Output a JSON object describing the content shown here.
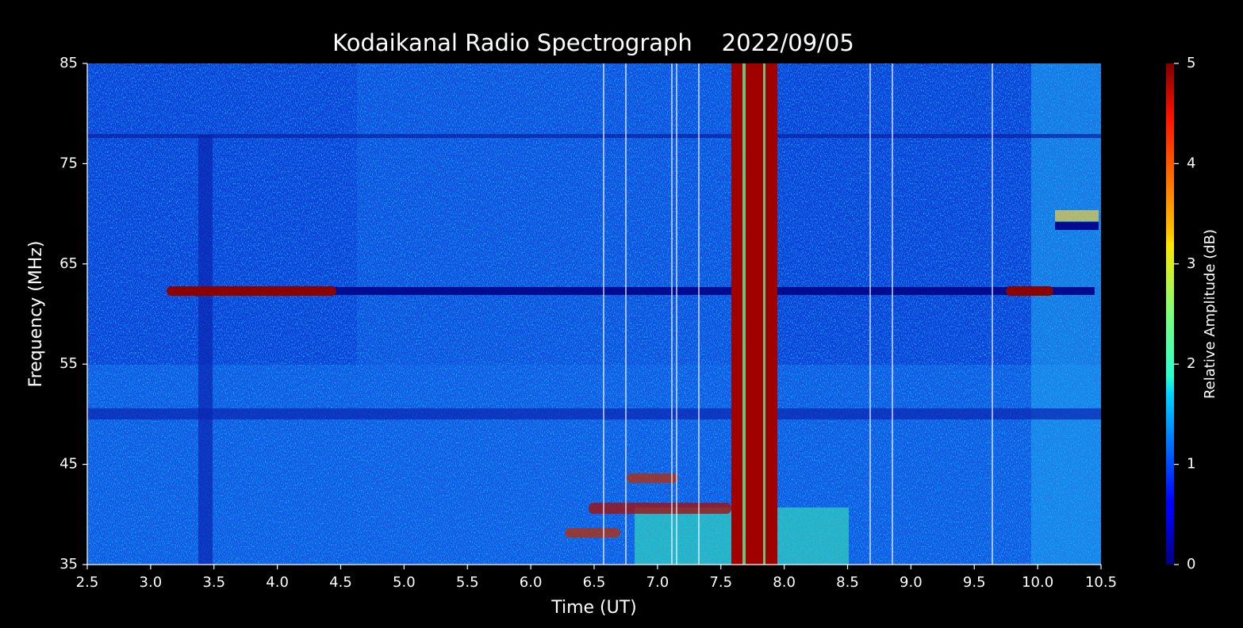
{
  "chart_data": {
    "type": "spectrogram",
    "title": "Kodaikanal Radio Spectrograph    2022/09/05",
    "x_label": "Time (UT)",
    "y_label": "Frequency (MHz)",
    "colorbar_label": "Relative Amplitude (dB)",
    "colormap": "jet",
    "xlim": [
      2.5,
      10.5
    ],
    "xticks": [
      2.5,
      {
        "value": 3,
        "label": "3.0"
      },
      3.5,
      {
        "value": 4,
        "label": "4.0"
      },
      4.5,
      {
        "value": 5,
        "label": "5.0"
      },
      5.5,
      {
        "value": 6,
        "label": "6.0"
      },
      6.5,
      {
        "value": 7,
        "label": "7.0"
      },
      7.5,
      {
        "value": 8,
        "label": "8.0"
      },
      8.5,
      {
        "value": 9,
        "label": "9.0"
      },
      9.5,
      {
        "value": 10,
        "label": "10.0"
      },
      10.5
    ],
    "ylim": [
      35,
      85
    ],
    "yticks": [
      35,
      45,
      55,
      65,
      75,
      85
    ],
    "clim": [
      0,
      5
    ],
    "cticks": [
      0,
      1,
      2,
      3,
      4,
      5
    ]
  }
}
